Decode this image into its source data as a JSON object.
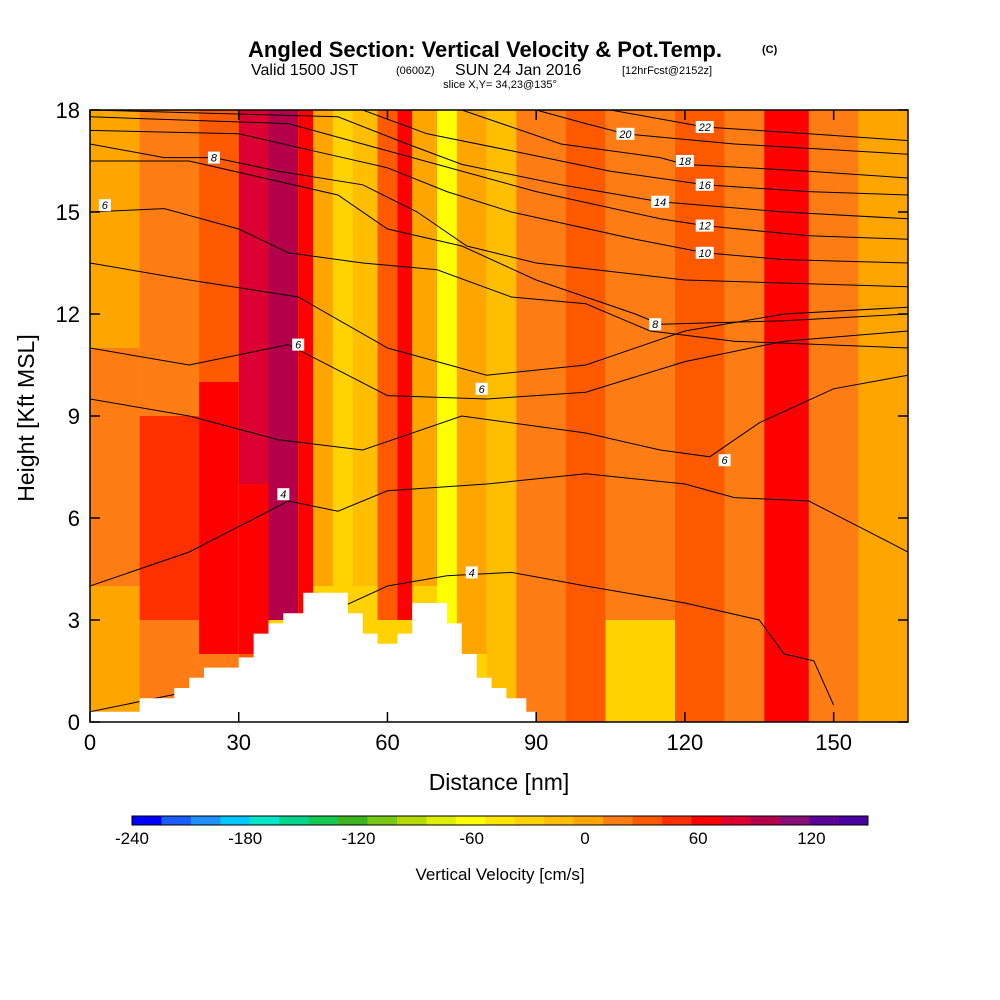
{
  "header": {
    "title": "Angled Section: Vertical Velocity & Pot.Temp.",
    "title_unit": "(C)",
    "valid_prefix": "Valid 1500 JST",
    "valid_utc": "(0600Z)",
    "valid_date": "SUN 24 Jan 2016",
    "forecast": "[12hrFcst@2152z]",
    "slice": "slice X,Y= 34,23@135°"
  },
  "chart_data": {
    "type": "heatmap",
    "xlabel": "Distance [nm]",
    "ylabel": "Height [Kft MSL]",
    "xlim": [
      0,
      165
    ],
    "ylim": [
      0,
      18
    ],
    "x_ticks": [
      0,
      30,
      60,
      90,
      120,
      150
    ],
    "y_ticks": [
      0,
      3,
      6,
      9,
      12,
      15,
      18
    ],
    "colorbar": {
      "title": "Vertical Velocity [cm/s]",
      "range": [
        -240,
        150
      ],
      "step": 15,
      "tick_values": [
        -240,
        -180,
        -120,
        -60,
        0,
        60,
        120
      ],
      "colors": [
        "#0000ff",
        "#1a5cff",
        "#1e90ff",
        "#00c8ff",
        "#00e6c8",
        "#00d48c",
        "#14c850",
        "#3cb41e",
        "#78c814",
        "#b4d800",
        "#dcf000",
        "#ffff00",
        "#ffe600",
        "#ffd200",
        "#ffbe00",
        "#ffa500",
        "#ff7d14",
        "#ff5a00",
        "#ff3000",
        "#ff0000",
        "#dc0032",
        "#b4004b",
        "#870f78",
        "#5a0596",
        "#4b00a0"
      ]
    },
    "vertical_velocity_cells": [
      {
        "x": [
          0,
          10
        ],
        "y": [
          0,
          4
        ],
        "w": -5
      },
      {
        "x": [
          0,
          10
        ],
        "y": [
          4,
          11
        ],
        "w": 10
      },
      {
        "x": [
          0,
          10
        ],
        "y": [
          11,
          18
        ],
        "w": -5
      },
      {
        "x": [
          10,
          22
        ],
        "y": [
          0,
          3
        ],
        "w": 10
      },
      {
        "x": [
          10,
          22
        ],
        "y": [
          3,
          9
        ],
        "w": 30
      },
      {
        "x": [
          10,
          22
        ],
        "y": [
          9,
          18
        ],
        "w": 10
      },
      {
        "x": [
          22,
          30
        ],
        "y": [
          0,
          2
        ],
        "w": 10
      },
      {
        "x": [
          22,
          30
        ],
        "y": [
          2,
          10
        ],
        "w": 45
      },
      {
        "x": [
          22,
          30
        ],
        "y": [
          10,
          18
        ],
        "w": 15
      },
      {
        "x": [
          30,
          36
        ],
        "y": [
          0,
          2
        ],
        "w": 15
      },
      {
        "x": [
          30,
          36
        ],
        "y": [
          2,
          7
        ],
        "w": 45
      },
      {
        "x": [
          30,
          36
        ],
        "y": [
          7,
          18
        ],
        "w": 60
      },
      {
        "x": [
          36,
          42
        ],
        "y": [
          3,
          18
        ],
        "w": 80
      },
      {
        "x": [
          42,
          45
        ],
        "y": [
          3,
          18
        ],
        "w": 50
      },
      {
        "x": [
          45,
          49
        ],
        "y": [
          4,
          18
        ],
        "w": -15
      },
      {
        "x": [
          49,
          53
        ],
        "y": [
          4,
          18
        ],
        "w": -45
      },
      {
        "x": [
          53,
          58
        ],
        "y": [
          4,
          18
        ],
        "w": -20
      },
      {
        "x": [
          58,
          62
        ],
        "y": [
          3,
          18
        ],
        "w": 15
      },
      {
        "x": [
          62,
          65
        ],
        "y": [
          3,
          18
        ],
        "w": 45
      },
      {
        "x": [
          65,
          70
        ],
        "y": [
          4,
          18
        ],
        "w": -15
      },
      {
        "x": [
          70,
          74
        ],
        "y": [
          2,
          18
        ],
        "w": -75
      },
      {
        "x": [
          74,
          80
        ],
        "y": [
          2,
          18
        ],
        "w": -5
      },
      {
        "x": [
          80,
          86
        ],
        "y": [
          0,
          18
        ],
        "w": -20
      },
      {
        "x": [
          86,
          96
        ],
        "y": [
          0,
          18
        ],
        "w": 5
      },
      {
        "x": [
          96,
          104
        ],
        "y": [
          0,
          18
        ],
        "w": 25
      },
      {
        "x": [
          104,
          118
        ],
        "y": [
          0,
          3
        ],
        "w": -35
      },
      {
        "x": [
          104,
          118
        ],
        "y": [
          3,
          18
        ],
        "w": 10
      },
      {
        "x": [
          118,
          128
        ],
        "y": [
          0,
          18
        ],
        "w": 25
      },
      {
        "x": [
          128,
          136
        ],
        "y": [
          0,
          18
        ],
        "w": 10
      },
      {
        "x": [
          136,
          145
        ],
        "y": [
          0,
          18
        ],
        "w": 45
      },
      {
        "x": [
          145,
          155
        ],
        "y": [
          0,
          18
        ],
        "w": 5
      },
      {
        "x": [
          155,
          165
        ],
        "y": [
          0,
          18
        ],
        "w": -5
      }
    ],
    "terrain_profile": [
      [
        0,
        0.3
      ],
      [
        10,
        0.3
      ],
      [
        10,
        0.7
      ],
      [
        17,
        0.7
      ],
      [
        17,
        1.0
      ],
      [
        20,
        1.0
      ],
      [
        20,
        1.3
      ],
      [
        23,
        1.3
      ],
      [
        23,
        1.6
      ],
      [
        30,
        1.6
      ],
      [
        30,
        1.9
      ],
      [
        33,
        1.9
      ],
      [
        33,
        2.6
      ],
      [
        36,
        2.6
      ],
      [
        36,
        2.9
      ],
      [
        39,
        2.9
      ],
      [
        39,
        3.2
      ],
      [
        43,
        3.2
      ],
      [
        43,
        3.8
      ],
      [
        52,
        3.8
      ],
      [
        52,
        3.2
      ],
      [
        55,
        3.2
      ],
      [
        55,
        2.6
      ],
      [
        58,
        2.6
      ],
      [
        58,
        2.3
      ],
      [
        62,
        2.3
      ],
      [
        62,
        2.6
      ],
      [
        65,
        2.6
      ],
      [
        65,
        3.5
      ],
      [
        72,
        3.5
      ],
      [
        72,
        2.9
      ],
      [
        75,
        2.9
      ],
      [
        75,
        2.0
      ],
      [
        78,
        2.0
      ],
      [
        78,
        1.3
      ],
      [
        81,
        1.3
      ],
      [
        81,
        1.0
      ],
      [
        84,
        1.0
      ],
      [
        84,
        0.7
      ],
      [
        88,
        0.7
      ],
      [
        88,
        0.3
      ],
      [
        90,
        0.3
      ],
      [
        90,
        0
      ]
    ],
    "pot_temp_contours": [
      {
        "label": "4",
        "points": [
          [
            0,
            0.3
          ],
          [
            30,
            1.2
          ],
          [
            45,
            3.0
          ],
          [
            60,
            4.0
          ],
          [
            72,
            4.3
          ],
          [
            85,
            4.4
          ],
          [
            100,
            4.0
          ],
          [
            120,
            3.5
          ],
          [
            135,
            3.0
          ],
          [
            140,
            2.0
          ],
          [
            146,
            1.8
          ],
          [
            150,
            0.5
          ]
        ],
        "label_at": [
          77,
          4.4
        ]
      },
      {
        "label": "4",
        "points": [
          [
            0,
            4.0
          ],
          [
            20,
            5.0
          ],
          [
            40,
            6.5
          ],
          [
            50,
            6.2
          ],
          [
            60,
            6.8
          ],
          [
            80,
            7.0
          ],
          [
            100,
            7.3
          ],
          [
            120,
            7.0
          ],
          [
            130,
            6.6
          ],
          [
            145,
            6.5
          ],
          [
            165,
            5.0
          ]
        ],
        "label_at": [
          39,
          6.7
        ]
      },
      {
        "label": "6",
        "points": [
          [
            0,
            9.5
          ],
          [
            20,
            9.0
          ],
          [
            38,
            8.3
          ],
          [
            55,
            8.0
          ],
          [
            75,
            9.0
          ],
          [
            100,
            8.5
          ],
          [
            115,
            8.0
          ],
          [
            125,
            7.8
          ],
          [
            135,
            8.8
          ],
          [
            150,
            9.8
          ],
          [
            165,
            10.2
          ]
        ],
        "label_at": [
          128,
          7.7
        ]
      },
      {
        "label": "6",
        "points": [
          [
            0,
            11.0
          ],
          [
            20,
            10.5
          ],
          [
            40,
            11.1
          ],
          [
            60,
            9.6
          ],
          [
            80,
            9.5
          ],
          [
            100,
            9.7
          ],
          [
            120,
            10.6
          ],
          [
            140,
            11.2
          ],
          [
            165,
            11.5
          ]
        ],
        "label_at": [
          42,
          11.1
        ]
      },
      {
        "label": "6",
        "points": [
          [
            0,
            13.5
          ],
          [
            20,
            13.0
          ],
          [
            42,
            12.5
          ],
          [
            60,
            11.0
          ],
          [
            80,
            10.2
          ],
          [
            100,
            10.5
          ],
          [
            120,
            11.5
          ],
          [
            140,
            12.0
          ],
          [
            165,
            12.2
          ]
        ],
        "label_at": [
          79,
          9.8
        ]
      },
      {
        "label": "6",
        "points": [
          [
            0,
            15.0
          ],
          [
            15,
            15.1
          ],
          [
            30,
            14.5
          ],
          [
            40,
            13.8
          ],
          [
            55,
            13.5
          ],
          [
            70,
            13.3
          ],
          [
            85,
            12.5
          ],
          [
            100,
            12.3
          ],
          [
            113,
            11.5
          ],
          [
            130,
            11.2
          ],
          [
            165,
            11.0
          ]
        ],
        "label_at": [
          3,
          15.2
        ]
      },
      {
        "label": "8",
        "points": [
          [
            0,
            16.5
          ],
          [
            20,
            16.5
          ],
          [
            35,
            16.0
          ],
          [
            50,
            15.5
          ],
          [
            60,
            14.5
          ],
          [
            75,
            14.0
          ],
          [
            90,
            13.0
          ],
          [
            110,
            12.0
          ],
          [
            115,
            11.7
          ],
          [
            140,
            11.8
          ],
          [
            165,
            12.0
          ]
        ],
        "label_at": [
          114,
          11.7
        ]
      },
      {
        "label": "8",
        "points": [
          [
            0,
            17.0
          ],
          [
            15,
            16.6
          ],
          [
            25,
            16.6
          ],
          [
            38,
            16.2
          ],
          [
            55,
            15.8
          ],
          [
            66,
            15.0
          ],
          [
            76,
            14.0
          ],
          [
            90,
            13.5
          ],
          [
            120,
            13.0
          ],
          [
            165,
            12.8
          ]
        ],
        "label_at": [
          25,
          16.6
        ]
      },
      {
        "label": "10",
        "points": [
          [
            0,
            17.4
          ],
          [
            30,
            17.3
          ],
          [
            45,
            16.8
          ],
          [
            60,
            16.3
          ],
          [
            72,
            15.6
          ],
          [
            85,
            15.0
          ],
          [
            110,
            14.2
          ],
          [
            124,
            13.8
          ],
          [
            140,
            13.6
          ],
          [
            165,
            13.5
          ]
        ],
        "label_at": [
          124,
          13.8
        ]
      },
      {
        "label": "12",
        "points": [
          [
            0,
            17.8
          ],
          [
            40,
            17.6
          ],
          [
            55,
            17.0
          ],
          [
            70,
            16.4
          ],
          [
            90,
            15.6
          ],
          [
            115,
            14.8
          ],
          [
            124,
            14.6
          ],
          [
            145,
            14.3
          ],
          [
            165,
            14.2
          ]
        ],
        "label_at": [
          124,
          14.6
        ]
      },
      {
        "label": "14",
        "points": [
          [
            0,
            18.0
          ],
          [
            50,
            17.8
          ],
          [
            64,
            17.0
          ],
          [
            75,
            16.4
          ],
          [
            95,
            15.8
          ],
          [
            115,
            15.3
          ],
          [
            140,
            15.0
          ],
          [
            165,
            14.8
          ]
        ],
        "label_at": [
          115,
          15.3
        ]
      },
      {
        "label": "16",
        "points": [
          [
            55,
            18.0
          ],
          [
            68,
            17.3
          ],
          [
            85,
            16.8
          ],
          [
            105,
            16.2
          ],
          [
            124,
            15.8
          ],
          [
            145,
            15.6
          ],
          [
            165,
            15.5
          ]
        ],
        "label_at": [
          124,
          15.8
        ]
      },
      {
        "label": "18",
        "points": [
          [
            75,
            18.0
          ],
          [
            95,
            17.0
          ],
          [
            115,
            16.6
          ],
          [
            120,
            16.4
          ],
          [
            145,
            16.2
          ],
          [
            165,
            16.0
          ]
        ],
        "label_at": [
          120,
          16.5
        ]
      },
      {
        "label": "20",
        "points": [
          [
            90,
            18.0
          ],
          [
            100,
            17.6
          ],
          [
            108,
            17.3
          ],
          [
            130,
            17.0
          ],
          [
            165,
            16.7
          ]
        ],
        "label_at": [
          108,
          17.3
        ]
      },
      {
        "label": "22",
        "points": [
          [
            105,
            18.0
          ],
          [
            124,
            17.5
          ],
          [
            145,
            17.3
          ],
          [
            165,
            17.1
          ]
        ],
        "label_at": [
          124,
          17.5
        ]
      }
    ]
  }
}
